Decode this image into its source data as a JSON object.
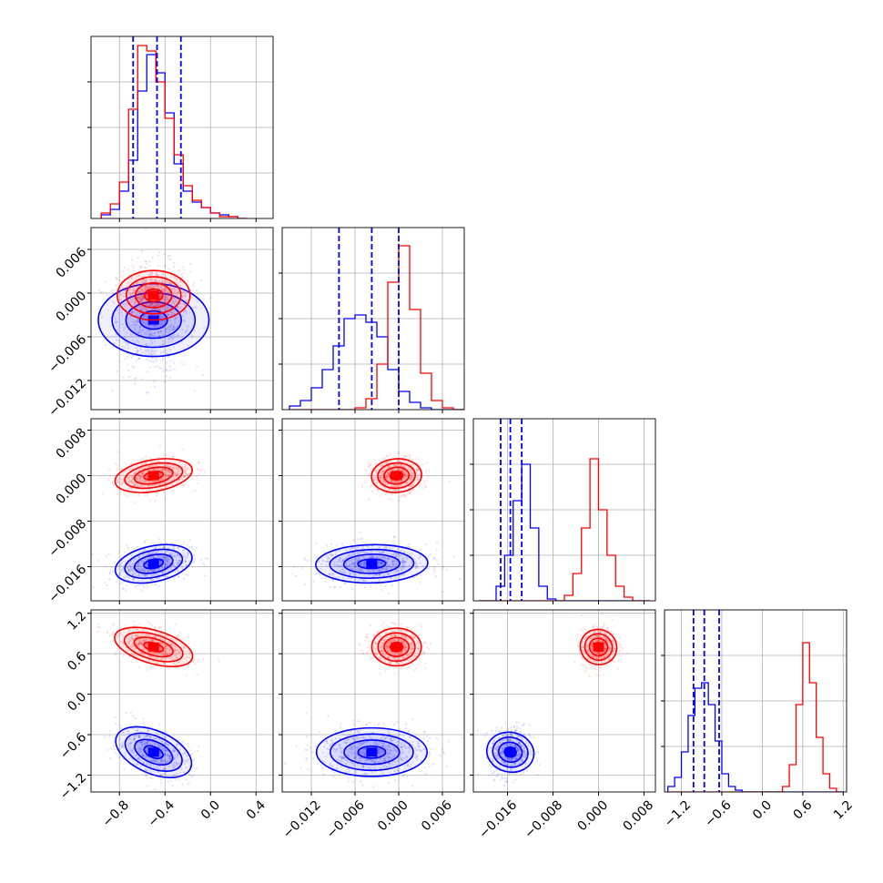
{
  "chart_data": {
    "type": "corner",
    "title": "",
    "series": [
      {
        "name": "",
        "color": "#0000ff"
      },
      {
        "name": "",
        "color": "#ff0000"
      }
    ],
    "grid": true,
    "variables": [
      {
        "range": [
          -1.05,
          0.55
        ],
        "ticks": [
          -0.8,
          -0.4,
          0.0,
          0.4
        ],
        "tick_labels": [
          "−0.8",
          "−0.4",
          "0.0",
          "0.4"
        ],
        "hist": {
          "bins": [
            -0.96,
            -0.88,
            -0.8,
            -0.72,
            -0.64,
            -0.56,
            -0.48,
            -0.4,
            -0.32,
            -0.24,
            -0.16,
            -0.08,
            0.0,
            0.08,
            0.16,
            0.24,
            0.32
          ],
          "blue": [
            2,
            5,
            15,
            32,
            70,
            90,
            80,
            58,
            30,
            15,
            9,
            6,
            3,
            2,
            1,
            0
          ],
          "red": [
            3,
            8,
            20,
            60,
            95,
            92,
            75,
            55,
            35,
            18,
            10,
            6,
            3,
            1,
            1,
            0
          ]
        },
        "quantiles_blue": [
          -0.68,
          -0.47,
          -0.26
        ],
        "hist_ylim": [
          0,
          100
        ]
      },
      {
        "range": [
          -0.016,
          0.009
        ],
        "ticks": [
          -0.012,
          -0.006,
          0.0,
          0.006
        ],
        "tick_labels": [
          "−0.012",
          "−0.006",
          "0.000",
          "0.006"
        ],
        "hist": {
          "bins": [
            -0.015,
            -0.0135,
            -0.012,
            -0.0105,
            -0.009,
            -0.0075,
            -0.006,
            -0.0045,
            -0.003,
            -0.0015,
            0.0,
            0.0015,
            0.003,
            0.0045,
            0.006,
            0.0075,
            0.009
          ],
          "blue": [
            2,
            5,
            12,
            22,
            35,
            50,
            52,
            48,
            40,
            22,
            10,
            4,
            1,
            0,
            0,
            0
          ],
          "red": [
            0,
            0,
            0,
            0,
            0,
            0,
            1,
            6,
            25,
            70,
            90,
            55,
            20,
            5,
            1,
            0
          ]
        },
        "quantiles_blue": [
          -0.0082,
          -0.0037,
          0.0
        ],
        "hist_ylim": [
          0,
          100
        ]
      },
      {
        "range": [
          -0.022,
          0.01
        ],
        "ticks": [
          -0.016,
          -0.008,
          0.0,
          0.008
        ],
        "tick_labels": [
          "−0.016",
          "−0.008",
          "0.000",
          "0.008"
        ],
        "hist": {
          "bins": [
            -0.021,
            -0.0195,
            -0.018,
            -0.0165,
            -0.015,
            -0.0135,
            -0.012,
            -0.0105,
            -0.009,
            -0.0075,
            -0.006,
            -0.0045,
            -0.003,
            -0.0015,
            0.0,
            0.0015,
            0.003,
            0.0045,
            0.006,
            0.0075,
            0.009
          ],
          "blue": [
            0,
            0,
            8,
            25,
            55,
            75,
            40,
            8,
            1,
            0,
            0,
            0,
            0,
            0,
            0,
            0,
            0,
            0,
            0,
            0
          ],
          "red": [
            0,
            0,
            0,
            0,
            0,
            0,
            0,
            0,
            0,
            0,
            3,
            15,
            40,
            78,
            50,
            25,
            8,
            2,
            0,
            0
          ]
        },
        "quantiles_blue": [
          -0.0172,
          -0.0155,
          -0.0135
        ],
        "hist_ylim": [
          0,
          100
        ]
      },
      {
        "range": [
          -1.45,
          1.25
        ],
        "ticks": [
          -1.2,
          -0.6,
          0.0,
          0.6,
          1.2
        ],
        "tick_labels": [
          "−1.2",
          "−0.6",
          "0.0",
          "0.6",
          "1.2"
        ],
        "hist": {
          "bins": [
            -1.4,
            -1.3,
            -1.2,
            -1.1,
            -1.0,
            -0.9,
            -0.8,
            -0.7,
            -0.6,
            -0.5,
            -0.4,
            -0.3,
            -0.2,
            -0.1,
            0.0,
            0.1,
            0.2,
            0.3,
            0.4,
            0.5,
            0.6,
            0.7,
            0.8,
            0.9,
            1.0,
            1.1,
            1.2
          ],
          "blue": [
            3,
            8,
            22,
            42,
            57,
            60,
            48,
            28,
            10,
            3,
            1,
            0,
            0,
            0,
            0,
            0,
            0,
            0,
            0,
            0,
            0,
            0,
            0,
            0,
            0,
            0
          ],
          "red": [
            0,
            0,
            0,
            0,
            0,
            0,
            0,
            0,
            0,
            0,
            0,
            0,
            0,
            0,
            0,
            0,
            0,
            3,
            15,
            48,
            82,
            60,
            30,
            10,
            2,
            0
          ]
        },
        "quantiles_blue": [
          -1.02,
          -0.86,
          -0.64
        ],
        "hist_ylim": [
          0,
          100
        ]
      }
    ],
    "clusters": {
      "blue": [
        {
          "mean": [
            -0.5,
            -0.0037,
            -0.0155,
            -0.86
          ],
          "std": [
            0.16,
            0.0038,
            0.0017,
            0.18
          ]
        }
      ],
      "red": [
        {
          "mean": [
            -0.5,
            -0.0003,
            0.0,
            0.7
          ],
          "std": [
            0.16,
            0.0017,
            0.0015,
            0.14
          ]
        }
      ]
    }
  }
}
